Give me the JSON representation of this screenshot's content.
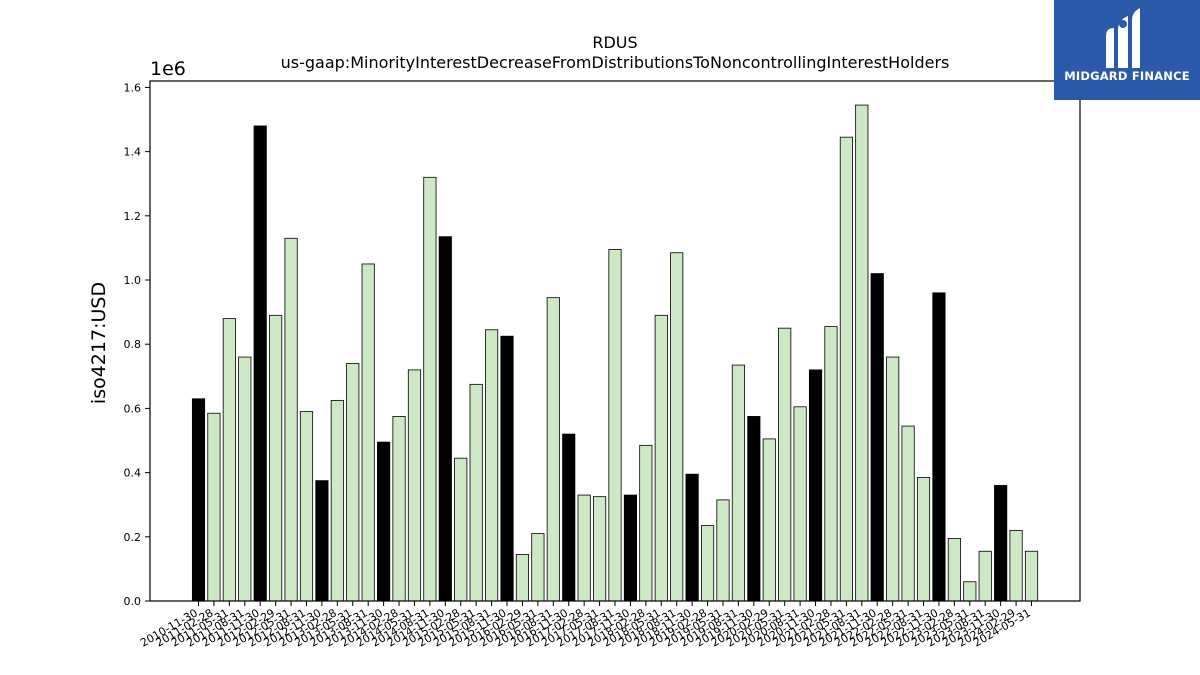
{
  "chart_data": {
    "type": "bar",
    "title": "RDUS",
    "subtitle": "us-gaap:MinorityInterestDecreaseFromDistributionsToNoncontrollingInterestHolders",
    "xlabel": "",
    "ylabel": "iso4217:USD",
    "y_scale_label": "1e6",
    "ylim": [
      0,
      1.62
    ],
    "y_ticks": [
      "0.0",
      "0.2",
      "0.4",
      "0.6",
      "0.8",
      "1.0",
      "1.2",
      "1.4",
      "1.6"
    ],
    "grid": false,
    "colors": {
      "annual": "#000000",
      "quarterly": "#cce8c4",
      "edge": "#000000"
    },
    "categories": [
      "2010-11-30",
      "2011-02-28",
      "2011-05-31",
      "2011-08-31",
      "2011-11-30",
      "2012-02-29",
      "2012-05-31",
      "2012-08-31",
      "2012-11-30",
      "2013-02-28",
      "2013-05-31",
      "2013-08-31",
      "2013-11-30",
      "2014-02-28",
      "2014-05-31",
      "2014-08-31",
      "2014-11-30",
      "2015-02-28",
      "2015-05-31",
      "2015-08-31",
      "2015-11-30",
      "2016-02-29",
      "2016-05-31",
      "2016-08-31",
      "2016-11-30",
      "2017-02-28",
      "2017-05-31",
      "2017-08-31",
      "2017-11-30",
      "2018-02-28",
      "2018-05-31",
      "2018-08-31",
      "2018-11-30",
      "2019-02-28",
      "2019-05-31",
      "2019-08-31",
      "2019-11-30",
      "2020-02-29",
      "2020-05-31",
      "2020-08-31",
      "2020-11-30",
      "2021-02-28",
      "2021-05-31",
      "2021-08-31",
      "2021-11-30",
      "2022-02-28",
      "2022-05-31",
      "2022-08-31",
      "2022-11-30",
      "2023-02-28",
      "2023-05-31",
      "2023-08-31",
      "2023-11-30",
      "2024-02-29",
      "2024-05-31"
    ],
    "values": [
      0.63,
      0.585,
      0.88,
      0.76,
      1.48,
      0.89,
      1.13,
      0.59,
      0.375,
      0.625,
      0.74,
      1.05,
      0.495,
      0.575,
      0.72,
      1.32,
      1.135,
      0.445,
      0.675,
      0.845,
      0.825,
      0.145,
      0.21,
      0.945,
      0.52,
      0.33,
      0.325,
      1.095,
      0.33,
      0.485,
      0.89,
      1.085,
      0.395,
      0.235,
      0.315,
      0.735,
      0.575,
      0.505,
      0.85,
      0.605,
      0.72,
      0.855,
      1.445,
      1.545,
      1.02,
      0.76,
      0.545,
      0.385,
      0.96,
      0.195,
      0.06,
      0.155,
      0.36,
      0.22,
      0.155
    ],
    "highlight": [
      true,
      false,
      false,
      false,
      true,
      false,
      false,
      false,
      true,
      false,
      false,
      false,
      true,
      false,
      false,
      false,
      true,
      false,
      false,
      false,
      true,
      false,
      false,
      false,
      true,
      false,
      false,
      false,
      true,
      false,
      false,
      false,
      true,
      false,
      false,
      false,
      true,
      false,
      false,
      false,
      true,
      false,
      false,
      false,
      true,
      false,
      false,
      false,
      true,
      false,
      false,
      false,
      true,
      false,
      false
    ]
  },
  "logo": {
    "text": "MIDGARD FINANCE"
  }
}
